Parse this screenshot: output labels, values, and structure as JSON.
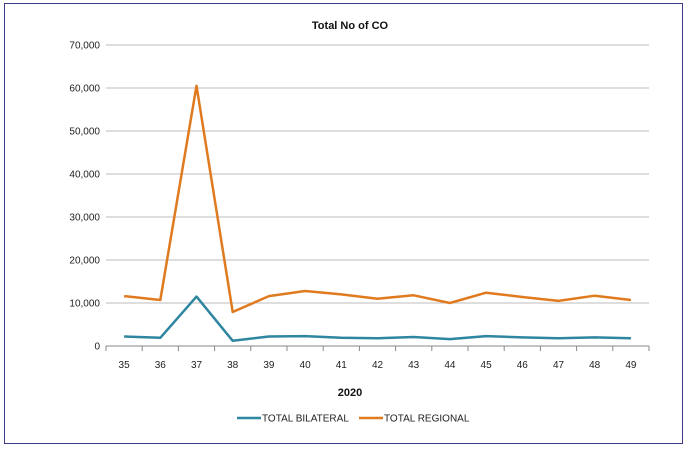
{
  "chart_data": {
    "type": "line",
    "title": "Total No of CO",
    "xlabel": "2020",
    "ylabel": "",
    "categories": [
      "35",
      "36",
      "37",
      "38",
      "39",
      "40",
      "41",
      "42",
      "43",
      "44",
      "45",
      "46",
      "47",
      "48",
      "49"
    ],
    "ylim": [
      0,
      70000
    ],
    "yticks": [
      "0",
      "10,000",
      "20,000",
      "30,000",
      "40,000",
      "50,000",
      "60,000",
      "70,000"
    ],
    "grid": true,
    "legend_position": "bottom",
    "series": [
      {
        "name": "TOTAL BILATERAL",
        "color": "#2e86a0",
        "values": [
          2200,
          1900,
          11500,
          1200,
          2200,
          2300,
          1900,
          1800,
          2100,
          1600,
          2300,
          2000,
          1800,
          2000,
          1800
        ]
      },
      {
        "name": "TOTAL REGIONAL",
        "color": "#e07a1f",
        "values": [
          11600,
          10700,
          60500,
          7900,
          11600,
          12800,
          12000,
          11000,
          11800,
          10000,
          12400,
          11400,
          10500,
          11700,
          10700
        ]
      }
    ]
  }
}
